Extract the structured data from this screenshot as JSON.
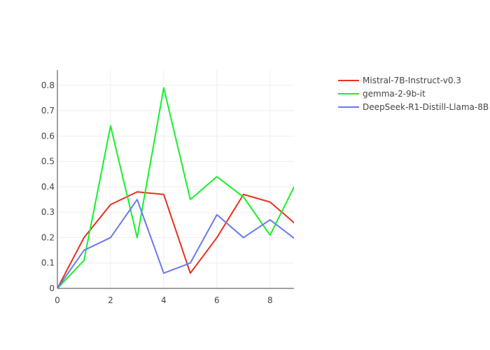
{
  "chart_data": {
    "type": "line",
    "title": "",
    "xlabel": "",
    "ylabel": "",
    "xlim": [
      0,
      8.9
    ],
    "ylim": [
      0,
      0.86
    ],
    "grid": true,
    "legend_position": "top-right",
    "x_ticks": [
      0,
      2,
      4,
      6,
      8
    ],
    "y_ticks": [
      0,
      0.1,
      0.2,
      0.3,
      0.4,
      0.5,
      0.6,
      0.7,
      0.8
    ],
    "x_tick_labels": [
      "0",
      "2",
      "4",
      "6",
      "8"
    ],
    "y_tick_labels": [
      "0",
      "0.1",
      "0.2",
      "0.3",
      "0.4",
      "0.5",
      "0.6",
      "0.7",
      "0.8"
    ],
    "x": [
      0,
      1,
      2,
      3,
      4,
      5,
      6,
      7,
      8,
      9
    ],
    "series": [
      {
        "name": "Mistral-7B-Instruct-v0.3",
        "color": "#e8301c",
        "values": [
          0,
          0.2,
          0.33,
          0.38,
          0.37,
          0.06,
          0.2,
          0.37,
          0.34,
          0.25
        ]
      },
      {
        "name": "gemma-2-9b-it",
        "color": "#14f22a",
        "values": [
          0,
          0.11,
          0.64,
          0.2,
          0.79,
          0.35,
          0.44,
          0.36,
          0.21,
          0.42
        ]
      },
      {
        "name": "DeepSeek-R1-Distill-Llama-8B",
        "color": "#6a78ef",
        "values": [
          0,
          0.15,
          0.2,
          0.35,
          0.06,
          0.1,
          0.29,
          0.2,
          0.27,
          0.19
        ]
      }
    ]
  }
}
